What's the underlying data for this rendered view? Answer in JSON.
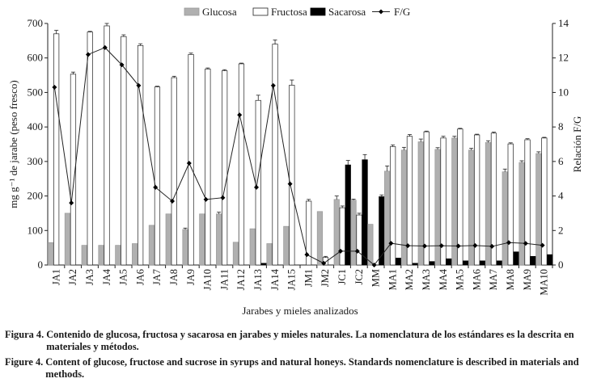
{
  "chart_data": {
    "type": "bar",
    "categories": [
      "JA1",
      "JA2",
      "JA3",
      "JA4",
      "JA5",
      "JA6",
      "JA7",
      "JA8",
      "JA9",
      "JA10",
      "JA11",
      "JA12",
      "JA13",
      "JA14",
      "JA15",
      "JM1",
      "JM2",
      "JC1",
      "JC2",
      "MM",
      "MA1",
      "MA2",
      "MA3",
      "MA4",
      "MA5",
      "MA6",
      "MA7",
      "MA8",
      "MA9",
      "MA10"
    ],
    "series": [
      {
        "name": "Glucosa",
        "color": "#b0b0b0",
        "values": [
          65,
          150,
          57,
          57,
          57,
          62,
          115,
          148,
          103,
          148,
          148,
          66,
          105,
          62,
          112,
          0,
          155,
          190,
          188,
          118,
          272,
          333,
          357,
          335,
          368,
          333,
          355,
          270,
          297,
          323
        ],
        "errors": [
          0,
          0,
          0,
          0,
          0,
          0,
          0,
          0,
          4,
          0,
          5,
          0,
          0,
          0,
          0,
          0,
          0,
          10,
          3,
          0,
          15,
          8,
          8,
          5,
          5,
          5,
          5,
          8,
          5,
          5
        ]
      },
      {
        "name": "Fructosa",
        "color": "#ffffff",
        "values": [
          670,
          553,
          675,
          693,
          662,
          636,
          516,
          543,
          610,
          568,
          563,
          583,
          477,
          640,
          521,
          185,
          22,
          166,
          145,
          0,
          343,
          373,
          386,
          368,
          394,
          377,
          382,
          351,
          363,
          368
        ],
        "errors": [
          10,
          6,
          2,
          7,
          5,
          5,
          2,
          4,
          4,
          3,
          3,
          2,
          15,
          12,
          15,
          5,
          3,
          5,
          5,
          0,
          5,
          5,
          2,
          5,
          2,
          2,
          3,
          3,
          3,
          2
        ]
      },
      {
        "name": "Sacarosa",
        "color": "#000000",
        "values": [
          0,
          0,
          0,
          0,
          0,
          0,
          0,
          0,
          0,
          0,
          0,
          0,
          5,
          0,
          0,
          0,
          0,
          290,
          305,
          198,
          20,
          5,
          10,
          18,
          12,
          12,
          12,
          38,
          25,
          30
        ],
        "errors": [
          0,
          0,
          0,
          0,
          0,
          0,
          0,
          0,
          0,
          0,
          0,
          0,
          0,
          0,
          0,
          0,
          0,
          13,
          15,
          5,
          0,
          0,
          0,
          0,
          0,
          0,
          0,
          0,
          0,
          0
        ]
      }
    ],
    "line_series": {
      "name": "F/G",
      "axis": "right",
      "values": [
        10.3,
        3.6,
        12.2,
        12.6,
        11.6,
        10.4,
        4.5,
        3.7,
        5.9,
        3.8,
        3.9,
        8.7,
        4.5,
        10.4,
        4.7,
        0.6,
        0.1,
        0.8,
        0.8,
        0,
        1.26,
        1.12,
        1.1,
        1.12,
        1.1,
        1.13,
        1.08,
        1.3,
        1.25,
        1.14
      ]
    },
    "title": "",
    "xlabel": "Jarabes y mieles analizados",
    "ylabel": "mg g⁻¹ de jarabe (peso fresco)",
    "y2label": "Relación F/G",
    "ylim": [
      0,
      700
    ],
    "y_ticks": [
      0,
      100,
      200,
      300,
      400,
      500,
      600,
      700
    ],
    "y2lim": [
      0,
      14
    ],
    "y2_ticks": [
      0,
      2,
      4,
      6,
      8,
      10,
      12,
      14
    ],
    "legend_position": "top"
  },
  "caption": {
    "es": {
      "label": "Figura 4.",
      "text": "Contenido de glucosa, fructosa y sacarosa en jarabes y mieles naturales. La nomenclatura de los estándares es la descrita en materiales y métodos."
    },
    "en": {
      "label": "Figure 4.",
      "text": "Content of glucose, fructose and sucrose in syrups and natural honeys. Standards nomenclature is described in materials and methods."
    }
  }
}
